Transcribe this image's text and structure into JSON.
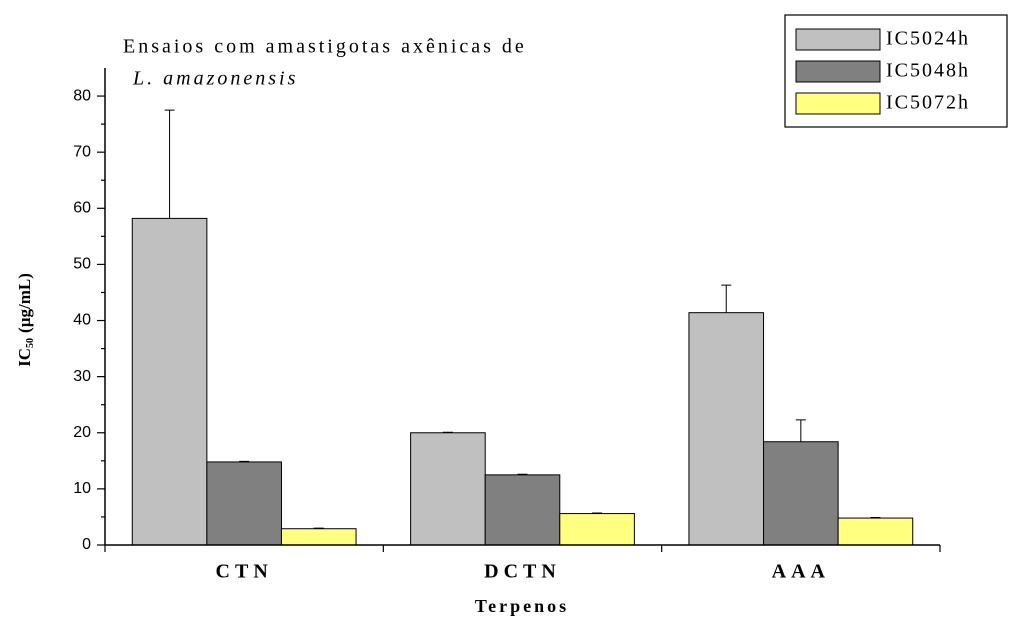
{
  "chart_data": {
    "type": "bar",
    "title": "Ensaios com amastigotas axênicas de",
    "subtitle": "L. amazonensis",
    "x_label": "Terpenos",
    "y_label": {
      "main": "IC",
      "sub": "50",
      "unit": "(µg/mL)"
    },
    "categories": [
      "CTN",
      "DCTN",
      "AAA"
    ],
    "series": [
      {
        "name": "IC5024h",
        "color": "#c0c0c0",
        "values": [
          58.2,
          20,
          41.4
        ],
        "errors": [
          19.3,
          0.1,
          4.9
        ]
      },
      {
        "name": "IC5048h",
        "color": "#808080",
        "values": [
          14.8,
          12.5,
          18.4
        ],
        "errors": [
          0.1,
          0.1,
          3.9
        ]
      },
      {
        "name": "IC5072h",
        "color": "#ffff80",
        "values": [
          2.9,
          5.6,
          4.8
        ],
        "errors": [
          0.1,
          0.1,
          0.1
        ]
      }
    ],
    "ylim": [
      0,
      85
    ],
    "yticks": [
      0,
      10,
      20,
      30,
      40,
      50,
      60,
      70,
      80
    ],
    "yminor_ticks": [
      5,
      15,
      25,
      35,
      45,
      55,
      65,
      75
    ],
    "legend": "upper right"
  }
}
